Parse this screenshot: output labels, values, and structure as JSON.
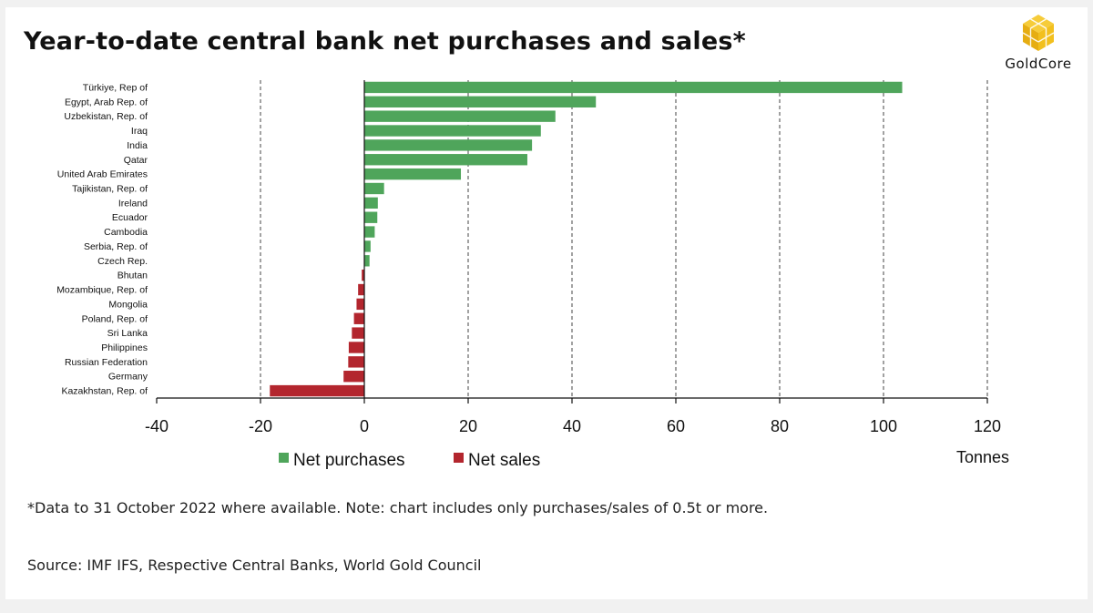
{
  "title": "Year-to-date central bank net purchases and sales*",
  "brand": {
    "name": "GoldCore",
    "logo_icon": "gold-cube-icon",
    "color": "#f2c01e"
  },
  "footnote": "*Data to 31 October 2022 where available. Note: chart includes only purchases/sales of 0.5t or more.",
  "source": "Source: IMF IFS, Respective Central Banks, World Gold Council",
  "chart_data": {
    "type": "bar",
    "orientation": "horizontal",
    "categories": [
      "Türkiye, Rep of",
      "Egypt, Arab Rep. of",
      "Uzbekistan, Rep. of",
      "Iraq",
      "India",
      "Qatar",
      "United Arab Emirates",
      "Tajikistan, Rep. of",
      "Ireland",
      "Ecuador",
      "Cambodia",
      "Serbia, Rep. of",
      "Czech Rep.",
      "Bhutan",
      "Mozambique, Rep. of",
      "Mongolia",
      "Poland, Rep. of",
      "Sri Lanka",
      "Philippines",
      "Russian Federation",
      "Germany",
      "Kazakhstan, Rep. of"
    ],
    "values": [
      103.6,
      44.6,
      36.8,
      34.0,
      32.3,
      31.4,
      18.6,
      3.8,
      2.6,
      2.5,
      2.0,
      1.2,
      1.0,
      -0.5,
      -1.2,
      -1.5,
      -2.0,
      -2.4,
      -3.0,
      -3.1,
      -4.0,
      -18.2
    ],
    "series": [
      {
        "name": "Net purchases",
        "color": "#4fa55b"
      },
      {
        "name": "Net sales",
        "color": "#b3262e"
      }
    ],
    "xlabel": "Tonnes",
    "ylabel": "",
    "xlim": [
      -40,
      120
    ],
    "xticks": [
      -40,
      -20,
      0,
      20,
      40,
      60,
      80,
      100,
      120
    ],
    "grid": "vertical-dashed",
    "legend": "bottom"
  }
}
